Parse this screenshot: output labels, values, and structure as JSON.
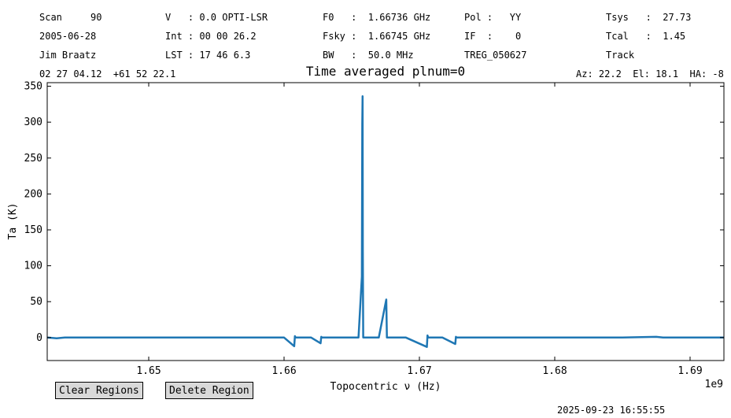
{
  "header": {
    "scan": "Scan     90",
    "date": "2005-06-28",
    "observer": "Jim Braatz",
    "coords": "02 27 04.12  +61 52 22.1",
    "velocity": "V   : 0.0 OPTI-LSR",
    "int_time": "Int : 00 00 26.2",
    "lst": "LST : 17 46 6.3",
    "f0": "F0   :  1.66736 GHz",
    "fsky": "Fsky :  1.66745 GHz",
    "bw": "BW   :  50.0 MHz",
    "pol": "Pol :   YY",
    "if": "IF  :    0",
    "proc": "TREG_050627",
    "tsys": "Tsys   :  27.73",
    "tcal": "Tcal   :  1.45",
    "mode": "Track",
    "azel": "Az: 22.2  El: 18.1  HA: -8"
  },
  "buttons": {
    "clear": "Clear Regions",
    "delete": "Delete Region"
  },
  "timestamp": "2025-09-23 16:55:55",
  "chart_data": {
    "type": "line",
    "title": "Time averaged plnum=0",
    "xlabel": "Topocentric ν (Hz)",
    "ylabel": "Ta (K)",
    "x_offset_label": "1e9",
    "xlim": [
      1.6425,
      1.6925
    ],
    "ylim": [
      -32,
      355
    ],
    "x_ticks": [
      1.65,
      1.66,
      1.67,
      1.68,
      1.69
    ],
    "x_tick_labels": [
      "1.65",
      "1.66",
      "1.67",
      "1.68",
      "1.69"
    ],
    "y_ticks": [
      0,
      50,
      100,
      150,
      200,
      250,
      300,
      350
    ],
    "y_tick_labels": [
      "0",
      "50",
      "100",
      "150",
      "200",
      "250",
      "300",
      "350"
    ],
    "line_color": "#1f77b4",
    "series": [
      {
        "x": [
          1.6425,
          1.6432,
          1.6438,
          1.645,
          1.65,
          1.655,
          1.66,
          1.66075,
          1.6608,
          1.66085,
          1.662,
          1.6627,
          1.66275,
          1.6628,
          1.664,
          1.6655,
          1.66575,
          1.66578,
          1.6658,
          1.66582,
          1.66585,
          1.6662,
          1.667,
          1.66755,
          1.6676,
          1.66765,
          1.669,
          1.67055,
          1.6706,
          1.67065,
          1.6717,
          1.67265,
          1.6727,
          1.67275,
          1.675,
          1.68,
          1.685,
          1.6875,
          1.688,
          1.689,
          1.6925
        ],
        "values": [
          0,
          -1,
          0,
          0,
          0,
          0,
          0,
          -12,
          2,
          0,
          0,
          -8,
          1,
          0,
          0,
          0,
          85,
          297,
          336,
          120,
          0,
          0,
          0,
          53,
          0,
          0,
          0,
          -13,
          3,
          0,
          0,
          -9,
          1,
          0,
          0,
          0,
          0,
          1,
          0,
          0,
          0
        ]
      }
    ]
  }
}
